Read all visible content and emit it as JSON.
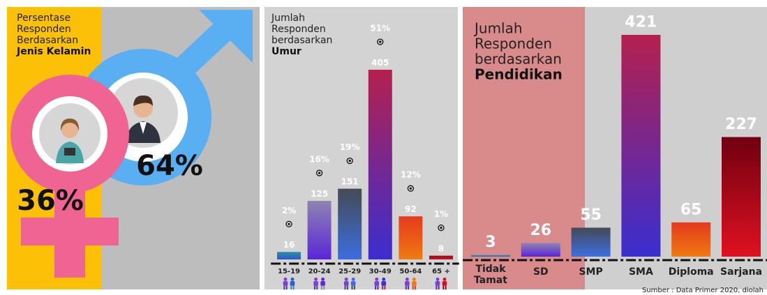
{
  "chart_data": [
    {
      "type": "icon",
      "title": [
        "Persentase",
        "Responden",
        "Berdasarkan"
      ],
      "subtitle": "Jenis Kelamin",
      "categories": [
        null,
        null
      ],
      "values": [
        36,
        64
      ],
      "value_labels": [
        "36%",
        "64%"
      ],
      "colors": [
        "#ef6493",
        "#5aaef2"
      ]
    },
    {
      "type": "bar",
      "title": [
        "Jumlah",
        "Responden",
        "berdasarkan"
      ],
      "subtitle": "Umur",
      "categories": [
        "15-19",
        "20-24",
        "25-29",
        "30-49",
        "50-64",
        "65 +"
      ],
      "values": [
        16,
        125,
        151,
        405,
        92,
        8
      ],
      "shares": [
        2,
        16,
        19,
        51,
        12,
        1
      ],
      "share_labels": [
        "2%",
        "16%",
        "19%",
        "51%",
        "12%",
        "1%"
      ],
      "colors": [
        [
          "#2f8fa0",
          "#2a5ad0"
        ],
        [
          "#8f84b0",
          "#5a26d8"
        ],
        [
          "#454a55",
          "#3b6ee0"
        ],
        [
          "#b5204e",
          "#3a2ed0"
        ],
        [
          "#e53a1e",
          "#f07a10"
        ],
        [
          "#8a0f1a",
          "#d01020"
        ]
      ]
    },
    {
      "type": "bar",
      "title": [
        "Jumlah",
        "Responden",
        "berdasarkan"
      ],
      "subtitle": "Pendidikan",
      "categories": [
        "Tidak Tamat",
        "SD",
        "SMP",
        "SMA",
        "Diploma",
        "Sarjana"
      ],
      "values": [
        3,
        26,
        55,
        421,
        65,
        227
      ],
      "source": "Sumber : Data Primer 2020, diolah",
      "colors": [
        [
          "#2f8fa0",
          "#2a6ad0"
        ],
        [
          "#8f84b0",
          "#5a26d8"
        ],
        [
          "#454a55",
          "#3b6ee0"
        ],
        [
          "#b5204e",
          "#3a2ed0"
        ],
        [
          "#e53a1e",
          "#f07a10"
        ],
        [
          "#700010",
          "#e01020"
        ]
      ]
    }
  ]
}
